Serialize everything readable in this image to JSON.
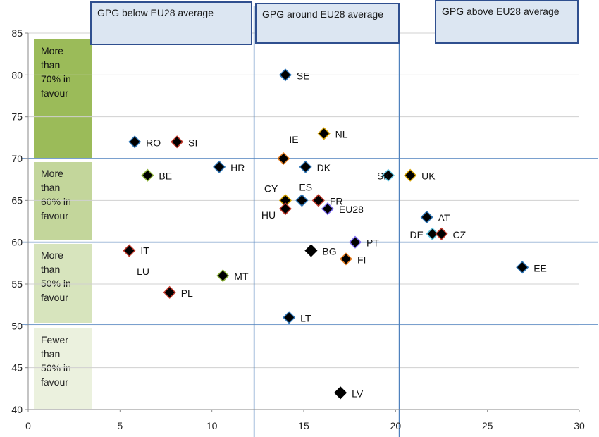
{
  "chart_data": {
    "type": "scatter",
    "title": "",
    "xlabel": "",
    "ylabel": "",
    "xlim": [
      0,
      30
    ],
    "ylim": [
      40,
      85
    ],
    "x_ticks": [
      0,
      5,
      10,
      15,
      20,
      25,
      30
    ],
    "y_ticks": [
      40,
      45,
      50,
      55,
      60,
      65,
      70,
      75,
      80,
      85
    ],
    "grid": "horizontal",
    "reference_lines": {
      "horizontal": [
        70,
        60,
        50.2
      ],
      "vertical": [
        12.3,
        20.2
      ]
    },
    "points": [
      {
        "label": "SE",
        "x": 14.0,
        "y": 80,
        "fill": "#000000",
        "edge": "#2e75b6"
      },
      {
        "label": "NL",
        "x": 16.1,
        "y": 73,
        "fill": "#000000",
        "edge": "#d4a000"
      },
      {
        "label": "RO",
        "x": 5.8,
        "y": 72,
        "fill": "#000000",
        "edge": "#2e75b6"
      },
      {
        "label": "SI",
        "x": 8.1,
        "y": 72,
        "fill": "#000000",
        "edge": "#c0392b"
      },
      {
        "label": "IE",
        "x": 13.9,
        "y": 70,
        "fill": "#000000",
        "edge": "#e67e22"
      },
      {
        "label": "HR",
        "x": 10.4,
        "y": 69,
        "fill": "#000000",
        "edge": "#2e75b6"
      },
      {
        "label": "DK",
        "x": 15.1,
        "y": 69,
        "fill": "#000000",
        "edge": "#2e75b6"
      },
      {
        "label": "BE",
        "x": 6.5,
        "y": 68,
        "fill": "#000000",
        "edge": "#8db33a"
      },
      {
        "label": "SK",
        "x": 19.6,
        "y": 68,
        "fill": "#000000",
        "edge": "#5bc0de"
      },
      {
        "label": "UK",
        "x": 20.8,
        "y": 68,
        "fill": "#000000",
        "edge": "#d4a000"
      },
      {
        "label": "CY",
        "x": 14.0,
        "y": 65,
        "fill": "#000000",
        "edge": "#d4a000"
      },
      {
        "label": "ES",
        "x": 14.9,
        "y": 65,
        "fill": "#000000",
        "edge": "#2e75b6"
      },
      {
        "label": "FR",
        "x": 15.8,
        "y": 65,
        "fill": "#000000",
        "edge": "#c0392b"
      },
      {
        "label": "HU",
        "x": 14.0,
        "y": 64,
        "fill": "#000000",
        "edge": "#c0392b"
      },
      {
        "label": "EU28",
        "x": 16.3,
        "y": 64,
        "fill": "#000000",
        "edge": "#7b68ee"
      },
      {
        "label": "AT",
        "x": 21.7,
        "y": 63,
        "fill": "#000000",
        "edge": "#2e75b6"
      },
      {
        "label": "DE",
        "x": 22.0,
        "y": 61,
        "fill": "#000000",
        "edge": "#5bc0de"
      },
      {
        "label": "CZ",
        "x": 22.5,
        "y": 61,
        "fill": "#000000",
        "edge": "#c0392b"
      },
      {
        "label": "PT",
        "x": 17.8,
        "y": 60,
        "fill": "#000000",
        "edge": "#7b68ee"
      },
      {
        "label": "IT",
        "x": 5.5,
        "y": 59,
        "fill": "#000000",
        "edge": "#c0392b"
      },
      {
        "label": "BG",
        "x": 15.4,
        "y": 59,
        "fill": "#000000",
        "edge": "#000000"
      },
      {
        "label": "FI",
        "x": 17.3,
        "y": 58,
        "fill": "#000000",
        "edge": "#e67e22"
      },
      {
        "label": "EE",
        "x": 26.9,
        "y": 57,
        "fill": "#000000",
        "edge": "#2e75b6"
      },
      {
        "label": "MT",
        "x": 10.6,
        "y": 56,
        "fill": "#000000",
        "edge": "#8db33a"
      },
      {
        "label": "PL",
        "x": 7.7,
        "y": 54,
        "fill": "#000000",
        "edge": "#c0392b"
      },
      {
        "label": "LT",
        "x": 14.2,
        "y": 51,
        "fill": "#000000",
        "edge": "#2e75b6"
      },
      {
        "label": "LV",
        "x": 17.0,
        "y": 42,
        "fill": "#000000",
        "edge": "#000000"
      }
    ],
    "extra_labels": [
      {
        "text": "LU",
        "x": 6.6,
        "y": 56.5
      }
    ],
    "column_boxes": [
      "GPG below EU28 average",
      "GPG around EU28 average",
      "GPG above EU28 average"
    ],
    "bands": [
      {
        "text": "More than 70% in favour",
        "lines": [
          "More",
          "than",
          "70% in",
          "favour"
        ],
        "color": "#9bbb59"
      },
      {
        "text": "More than 60% in favour",
        "lines": [
          "More",
          "than",
          "60% in",
          "favour"
        ],
        "color": "#c3d69b"
      },
      {
        "text": "More than 50% in favour",
        "lines": [
          "More",
          "than",
          "50% in",
          "favour"
        ],
        "color": "#d7e4bd"
      },
      {
        "text": "Fewer than 50% in favour",
        "lines": [
          "Fewer",
          "than",
          "50% in",
          "favour"
        ],
        "color": "#ebf1de"
      }
    ]
  }
}
